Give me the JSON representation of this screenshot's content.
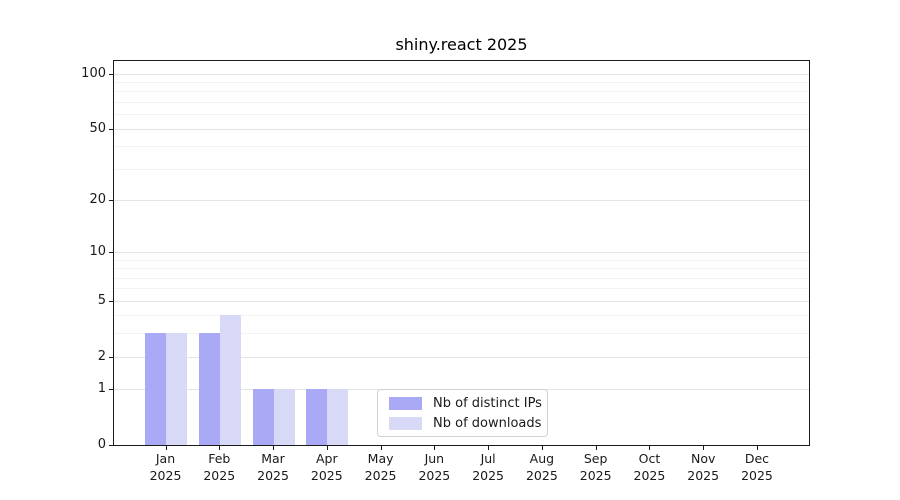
{
  "figure": {
    "title": "shiny.react 2025"
  },
  "legend": {
    "items": [
      {
        "label": "Nb of distinct IPs",
        "color": "#a9a9f6"
      },
      {
        "label": "Nb of downloads",
        "color": "#d8d8f7"
      }
    ]
  },
  "chart_data": {
    "type": "bar",
    "title": "shiny.react 2025",
    "categories": [
      "Jan 2025",
      "Feb 2025",
      "Mar 2025",
      "Apr 2025",
      "May 2025",
      "Jun 2025",
      "Jul 2025",
      "Aug 2025",
      "Sep 2025",
      "Oct 2025",
      "Nov 2025",
      "Dec 2025"
    ],
    "x_tick_labels": [
      {
        "line1": "Jan",
        "line2": "2025"
      },
      {
        "line1": "Feb",
        "line2": "2025"
      },
      {
        "line1": "Mar",
        "line2": "2025"
      },
      {
        "line1": "Apr",
        "line2": "2025"
      },
      {
        "line1": "May",
        "line2": "2025"
      },
      {
        "line1": "Jun",
        "line2": "2025"
      },
      {
        "line1": "Jul",
        "line2": "2025"
      },
      {
        "line1": "Aug",
        "line2": "2025"
      },
      {
        "line1": "Sep",
        "line2": "2025"
      },
      {
        "line1": "Oct",
        "line2": "2025"
      },
      {
        "line1": "Nov",
        "line2": "2025"
      },
      {
        "line1": "Dec",
        "line2": "2025"
      }
    ],
    "series": [
      {
        "name": "Nb of distinct IPs",
        "color": "#a9a9f6",
        "values": [
          3,
          3,
          1,
          1,
          0,
          0,
          0,
          0,
          0,
          0,
          0,
          0
        ]
      },
      {
        "name": "Nb of downloads",
        "color": "#d8d8f7",
        "values": [
          3,
          4,
          1,
          1,
          0,
          0,
          0,
          0,
          0,
          0,
          0,
          0
        ]
      }
    ],
    "y_axis": {
      "scale": "log1p",
      "major_ticks": [
        0,
        1,
        2,
        5,
        10,
        20,
        50,
        100
      ],
      "minor_ticks": [
        3,
        4,
        6,
        7,
        8,
        9,
        30,
        40,
        60,
        70,
        80,
        90
      ],
      "min": 0,
      "max": 117
    },
    "grid": true,
    "legend_position": "lower center inside",
    "colors": {
      "major_grid": "#e4e4e4",
      "minor_grid": "#f3f3f3",
      "spine": "#1a1a1a",
      "text": "#000000"
    }
  }
}
